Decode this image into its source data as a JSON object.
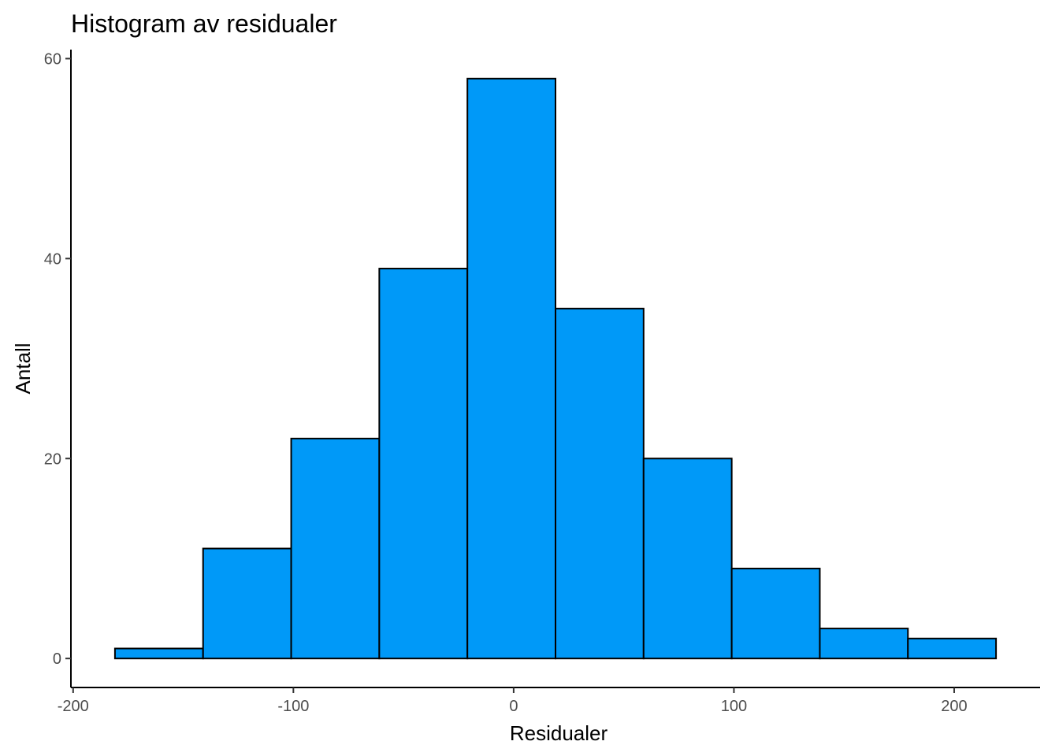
{
  "chart_data": {
    "type": "bar",
    "title": "Histogram av residualer",
    "xlabel": "Residualer",
    "ylabel": "Antall",
    "bin_width": 40,
    "bins": [
      {
        "x0": -181,
        "x1": -141,
        "count": 1
      },
      {
        "x0": -141,
        "x1": -101,
        "count": 11
      },
      {
        "x0": -101,
        "x1": -61,
        "count": 22
      },
      {
        "x0": -61,
        "x1": -21,
        "count": 39
      },
      {
        "x0": -21,
        "x1": 19,
        "count": 58
      },
      {
        "x0": 19,
        "x1": 59,
        "count": 35
      },
      {
        "x0": 59,
        "x1": 99,
        "count": 20
      },
      {
        "x0": 99,
        "x1": 139,
        "count": 9
      },
      {
        "x0": 139,
        "x1": 179,
        "count": 3
      },
      {
        "x0": 179,
        "x1": 219,
        "count": 2
      }
    ],
    "xticks": [
      -200,
      -100,
      0,
      100,
      200
    ],
    "xtick_labels": [
      "-200",
      "-100",
      "0",
      "100",
      "200"
    ],
    "yticks": [
      0,
      20,
      40,
      60
    ],
    "ytick_labels": [
      "0",
      "20",
      "40",
      "60"
    ],
    "xlim": [
      -201,
      239
    ],
    "ylim": [
      -2.9,
      60.9
    ],
    "grid": false,
    "legend": "none",
    "colors": {
      "bar_fill": "#0099f8",
      "bar_stroke": "#000000",
      "axis": "#000000",
      "tick_text": "#4d4d4d"
    }
  }
}
